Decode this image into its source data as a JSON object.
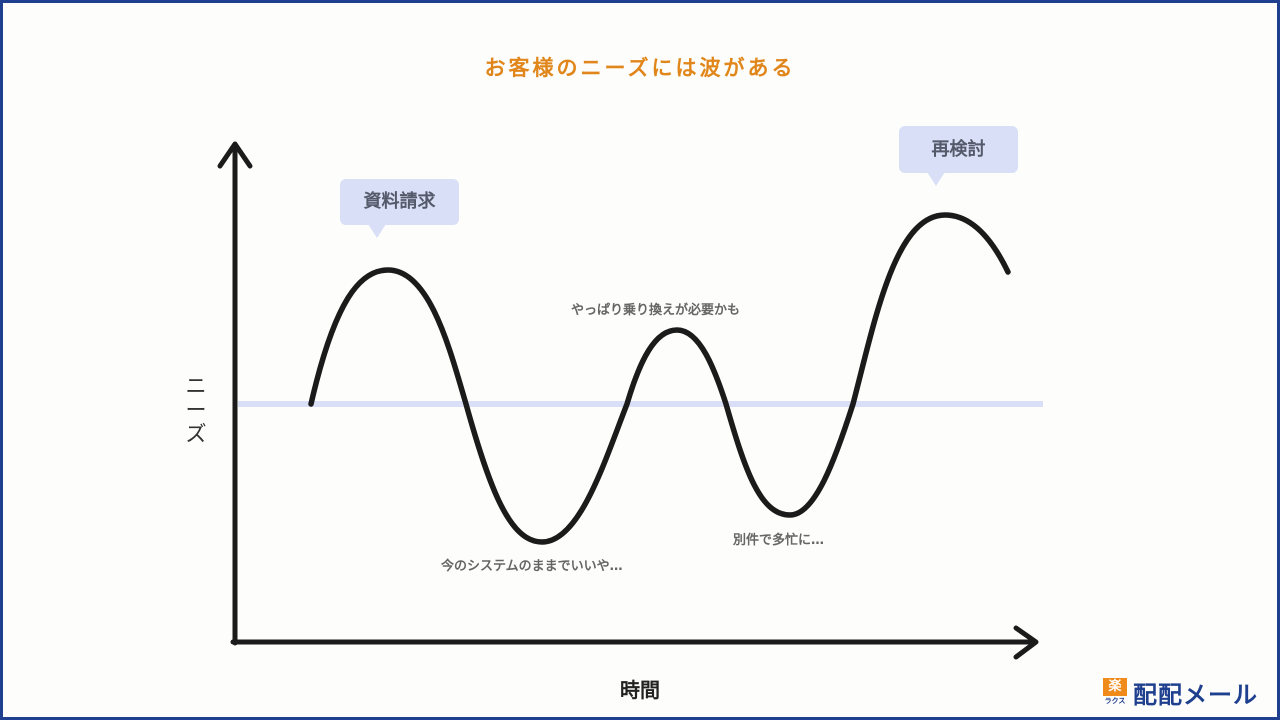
{
  "title": "お客様のニーズには波がある",
  "axes": {
    "y_label_chars": [
      "ニ",
      "ー",
      "ズ"
    ],
    "x_label": "時間"
  },
  "bubbles": {
    "request_docs": "資料請求",
    "reconsider": "再検討"
  },
  "notes": {
    "switch_after_all": "やっぱり乗り換えが必要かも",
    "current_ok": "今のシステムのままでいいや…",
    "busy": "別件で多忙に…"
  },
  "logo": {
    "mark_top": "楽",
    "mark_bottom": "ラクス",
    "text": "配配メール"
  },
  "colors": {
    "title": "#e0861a",
    "curve": "#1b1b1b",
    "baseline": "#d9dff6",
    "bubble": "#d9dff6",
    "frame": "#1f3f8f"
  }
}
